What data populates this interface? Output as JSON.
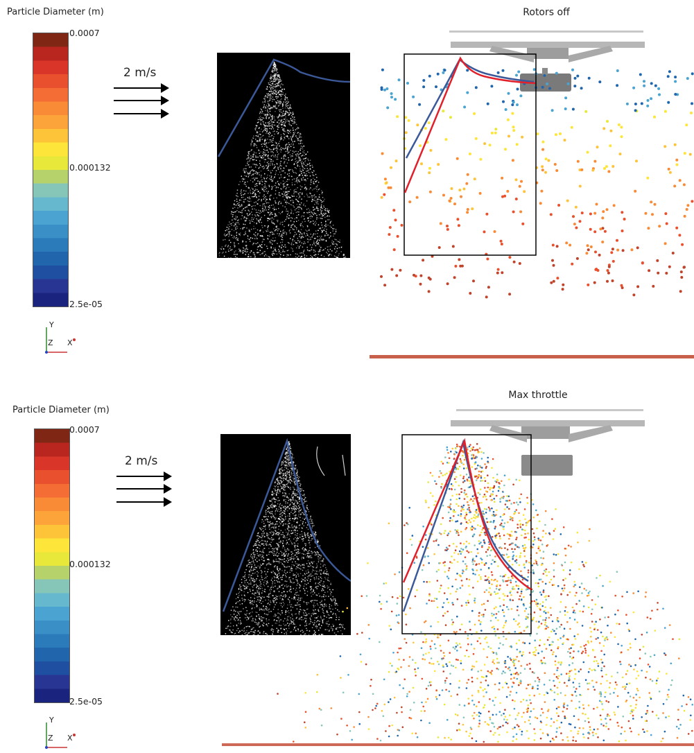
{
  "colorbar": {
    "title": "Particle Diameter (m)",
    "max": "0.0007",
    "mid": "0.000132",
    "min": "2.5e-05",
    "colors": [
      "#1a237e",
      "#283593",
      "#1f4fa0",
      "#2166ac",
      "#2b7bba",
      "#3a8fc7",
      "#4aa3d0",
      "#66b8cf",
      "#86c6b8",
      "#b5d36a",
      "#e8e83a",
      "#fde53a",
      "#fdc43a",
      "#fca43a",
      "#f98a36",
      "#f46d34",
      "#e8502e",
      "#d93528",
      "#b8261f",
      "#7f2614"
    ]
  },
  "axes": {
    "y": "Y",
    "z": "Z",
    "x": "X"
  },
  "flow": {
    "speed": "2 m/s"
  },
  "top": {
    "title": "Rotors off"
  },
  "bottom": {
    "title": "Max throttle"
  },
  "colors": {
    "experiment_envelope": "#3b5998",
    "simulation_envelope": "#e0202a",
    "frame": "#000000",
    "floor": "#c0442c"
  }
}
